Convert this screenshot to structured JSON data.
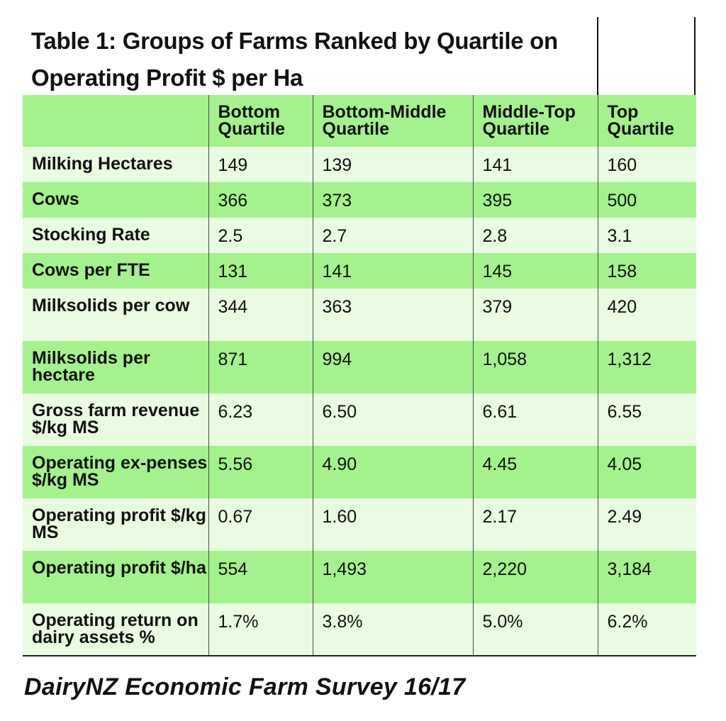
{
  "title": "Table 1: Groups of Farms Ranked by Quartile on Operating Profit $ per Ha",
  "columns": [
    "",
    "Bottom Quartile",
    "Bottom-Middle Quartile",
    "Middle-Top Quartile",
    "Top Quartile"
  ],
  "rows": [
    {
      "label": "Milking Hectares",
      "values": [
        "149",
        "139",
        "141",
        "160"
      ]
    },
    {
      "label": "Cows",
      "values": [
        "366",
        "373",
        "395",
        "500"
      ]
    },
    {
      "label": "Stocking Rate",
      "values": [
        "2.5",
        "2.7",
        "2.8",
        "3.1"
      ]
    },
    {
      "label": "Cows per FTE",
      "values": [
        "131",
        "141",
        "145",
        "158"
      ]
    },
    {
      "label": "Milksolids per cow",
      "values": [
        "344",
        "363",
        "379",
        "420"
      ]
    },
    {
      "label": "Milksolids per hectare",
      "values": [
        "871",
        "994",
        "1,058",
        "1,312"
      ]
    },
    {
      "label": "Gross farm revenue $/kg MS",
      "values": [
        "6.23",
        "6.50",
        "6.61",
        "6.55"
      ]
    },
    {
      "label": "Operating ex-penses $/kg MS",
      "values": [
        "5.56",
        "4.90",
        "4.45",
        "4.05"
      ]
    },
    {
      "label": "Operating profit $/kg MS",
      "values": [
        "0.67",
        "1.60",
        "2.17",
        "2.49"
      ]
    },
    {
      "label": "Operating profit $/ha",
      "values": [
        "554",
        "1,493",
        "2,220",
        "3,184"
      ]
    },
    {
      "label": "Operating return on dairy assets %",
      "values": [
        "1.7%",
        "3.8%",
        "5.0%",
        "6.2%"
      ]
    }
  ],
  "source": "DairyNZ Economic Farm Survey 16/17",
  "colors": {
    "band_dark": "#a4f28d",
    "band_light": "#e9fbe0"
  }
}
